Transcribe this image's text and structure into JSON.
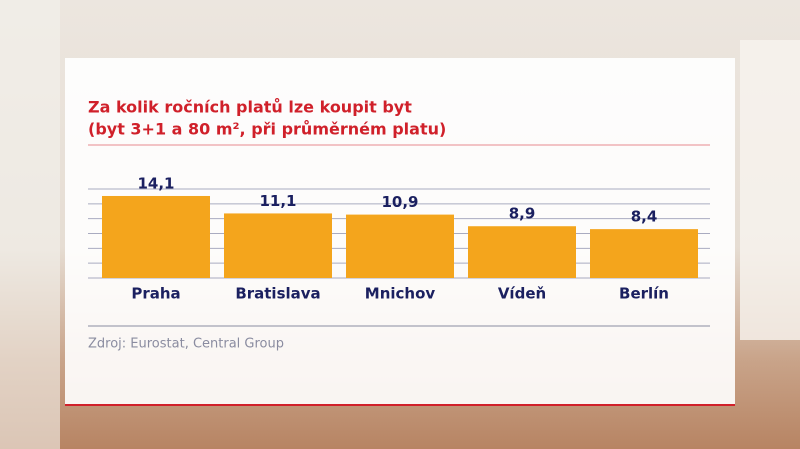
{
  "chart_data": {
    "type": "bar",
    "title": "Za kolik ročních platů lze koupit byt",
    "subtitle": "(byt 3+1 a 80 m², při průměrném platu)",
    "source": "Zdroj: Eurostat, Central Group",
    "categories": [
      "Praha",
      "Bratislava",
      "Mnichov",
      "Vídeň",
      "Berlín"
    ],
    "values": [
      14.1,
      11.1,
      10.9,
      8.9,
      8.4
    ],
    "value_labels": [
      "14,1",
      "11,1",
      "10,9",
      "8,9",
      "8,4"
    ],
    "color": "#f4a51c",
    "ylim": [
      0,
      15.3
    ]
  }
}
